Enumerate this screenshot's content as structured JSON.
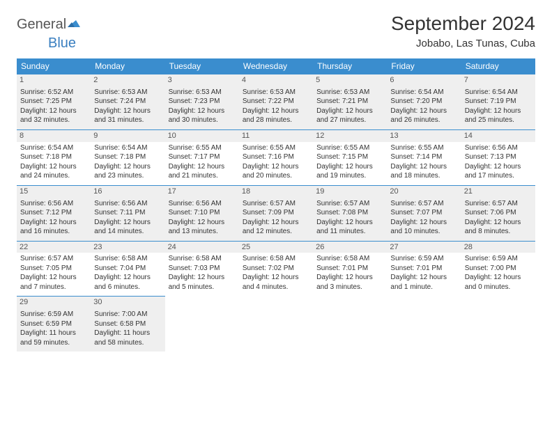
{
  "logo": {
    "text1": "General",
    "text2": "Blue",
    "flag_color": "#3a8dce"
  },
  "header": {
    "month_title": "September 2024",
    "location": "Jobabo, Las Tunas, Cuba"
  },
  "weekdays": [
    "Sunday",
    "Monday",
    "Tuesday",
    "Wednesday",
    "Thursday",
    "Friday",
    "Saturday"
  ],
  "colors": {
    "header_bg": "#3a8dce",
    "header_text": "#ffffff",
    "shade": "#efefef",
    "rule": "#3a8dce"
  },
  "weeks": [
    {
      "shaded": true,
      "days": [
        {
          "n": "1",
          "sr": "Sunrise: 6:52 AM",
          "ss": "Sunset: 7:25 PM",
          "d1": "Daylight: 12 hours",
          "d2": "and 32 minutes."
        },
        {
          "n": "2",
          "sr": "Sunrise: 6:53 AM",
          "ss": "Sunset: 7:24 PM",
          "d1": "Daylight: 12 hours",
          "d2": "and 31 minutes."
        },
        {
          "n": "3",
          "sr": "Sunrise: 6:53 AM",
          "ss": "Sunset: 7:23 PM",
          "d1": "Daylight: 12 hours",
          "d2": "and 30 minutes."
        },
        {
          "n": "4",
          "sr": "Sunrise: 6:53 AM",
          "ss": "Sunset: 7:22 PM",
          "d1": "Daylight: 12 hours",
          "d2": "and 28 minutes."
        },
        {
          "n": "5",
          "sr": "Sunrise: 6:53 AM",
          "ss": "Sunset: 7:21 PM",
          "d1": "Daylight: 12 hours",
          "d2": "and 27 minutes."
        },
        {
          "n": "6",
          "sr": "Sunrise: 6:54 AM",
          "ss": "Sunset: 7:20 PM",
          "d1": "Daylight: 12 hours",
          "d2": "and 26 minutes."
        },
        {
          "n": "7",
          "sr": "Sunrise: 6:54 AM",
          "ss": "Sunset: 7:19 PM",
          "d1": "Daylight: 12 hours",
          "d2": "and 25 minutes."
        }
      ]
    },
    {
      "shaded": false,
      "days": [
        {
          "n": "8",
          "sr": "Sunrise: 6:54 AM",
          "ss": "Sunset: 7:18 PM",
          "d1": "Daylight: 12 hours",
          "d2": "and 24 minutes."
        },
        {
          "n": "9",
          "sr": "Sunrise: 6:54 AM",
          "ss": "Sunset: 7:18 PM",
          "d1": "Daylight: 12 hours",
          "d2": "and 23 minutes."
        },
        {
          "n": "10",
          "sr": "Sunrise: 6:55 AM",
          "ss": "Sunset: 7:17 PM",
          "d1": "Daylight: 12 hours",
          "d2": "and 21 minutes."
        },
        {
          "n": "11",
          "sr": "Sunrise: 6:55 AM",
          "ss": "Sunset: 7:16 PM",
          "d1": "Daylight: 12 hours",
          "d2": "and 20 minutes."
        },
        {
          "n": "12",
          "sr": "Sunrise: 6:55 AM",
          "ss": "Sunset: 7:15 PM",
          "d1": "Daylight: 12 hours",
          "d2": "and 19 minutes."
        },
        {
          "n": "13",
          "sr": "Sunrise: 6:55 AM",
          "ss": "Sunset: 7:14 PM",
          "d1": "Daylight: 12 hours",
          "d2": "and 18 minutes."
        },
        {
          "n": "14",
          "sr": "Sunrise: 6:56 AM",
          "ss": "Sunset: 7:13 PM",
          "d1": "Daylight: 12 hours",
          "d2": "and 17 minutes."
        }
      ]
    },
    {
      "shaded": true,
      "days": [
        {
          "n": "15",
          "sr": "Sunrise: 6:56 AM",
          "ss": "Sunset: 7:12 PM",
          "d1": "Daylight: 12 hours",
          "d2": "and 16 minutes."
        },
        {
          "n": "16",
          "sr": "Sunrise: 6:56 AM",
          "ss": "Sunset: 7:11 PM",
          "d1": "Daylight: 12 hours",
          "d2": "and 14 minutes."
        },
        {
          "n": "17",
          "sr": "Sunrise: 6:56 AM",
          "ss": "Sunset: 7:10 PM",
          "d1": "Daylight: 12 hours",
          "d2": "and 13 minutes."
        },
        {
          "n": "18",
          "sr": "Sunrise: 6:57 AM",
          "ss": "Sunset: 7:09 PM",
          "d1": "Daylight: 12 hours",
          "d2": "and 12 minutes."
        },
        {
          "n": "19",
          "sr": "Sunrise: 6:57 AM",
          "ss": "Sunset: 7:08 PM",
          "d1": "Daylight: 12 hours",
          "d2": "and 11 minutes."
        },
        {
          "n": "20",
          "sr": "Sunrise: 6:57 AM",
          "ss": "Sunset: 7:07 PM",
          "d1": "Daylight: 12 hours",
          "d2": "and 10 minutes."
        },
        {
          "n": "21",
          "sr": "Sunrise: 6:57 AM",
          "ss": "Sunset: 7:06 PM",
          "d1": "Daylight: 12 hours",
          "d2": "and 8 minutes."
        }
      ]
    },
    {
      "shaded": false,
      "days": [
        {
          "n": "22",
          "sr": "Sunrise: 6:57 AM",
          "ss": "Sunset: 7:05 PM",
          "d1": "Daylight: 12 hours",
          "d2": "and 7 minutes."
        },
        {
          "n": "23",
          "sr": "Sunrise: 6:58 AM",
          "ss": "Sunset: 7:04 PM",
          "d1": "Daylight: 12 hours",
          "d2": "and 6 minutes."
        },
        {
          "n": "24",
          "sr": "Sunrise: 6:58 AM",
          "ss": "Sunset: 7:03 PM",
          "d1": "Daylight: 12 hours",
          "d2": "and 5 minutes."
        },
        {
          "n": "25",
          "sr": "Sunrise: 6:58 AM",
          "ss": "Sunset: 7:02 PM",
          "d1": "Daylight: 12 hours",
          "d2": "and 4 minutes."
        },
        {
          "n": "26",
          "sr": "Sunrise: 6:58 AM",
          "ss": "Sunset: 7:01 PM",
          "d1": "Daylight: 12 hours",
          "d2": "and 3 minutes."
        },
        {
          "n": "27",
          "sr": "Sunrise: 6:59 AM",
          "ss": "Sunset: 7:01 PM",
          "d1": "Daylight: 12 hours",
          "d2": "and 1 minute."
        },
        {
          "n": "28",
          "sr": "Sunrise: 6:59 AM",
          "ss": "Sunset: 7:00 PM",
          "d1": "Daylight: 12 hours",
          "d2": "and 0 minutes."
        }
      ]
    },
    {
      "shaded": true,
      "days": [
        {
          "n": "29",
          "sr": "Sunrise: 6:59 AM",
          "ss": "Sunset: 6:59 PM",
          "d1": "Daylight: 11 hours",
          "d2": "and 59 minutes."
        },
        {
          "n": "30",
          "sr": "Sunrise: 7:00 AM",
          "ss": "Sunset: 6:58 PM",
          "d1": "Daylight: 11 hours",
          "d2": "and 58 minutes."
        },
        null,
        null,
        null,
        null,
        null
      ]
    }
  ]
}
